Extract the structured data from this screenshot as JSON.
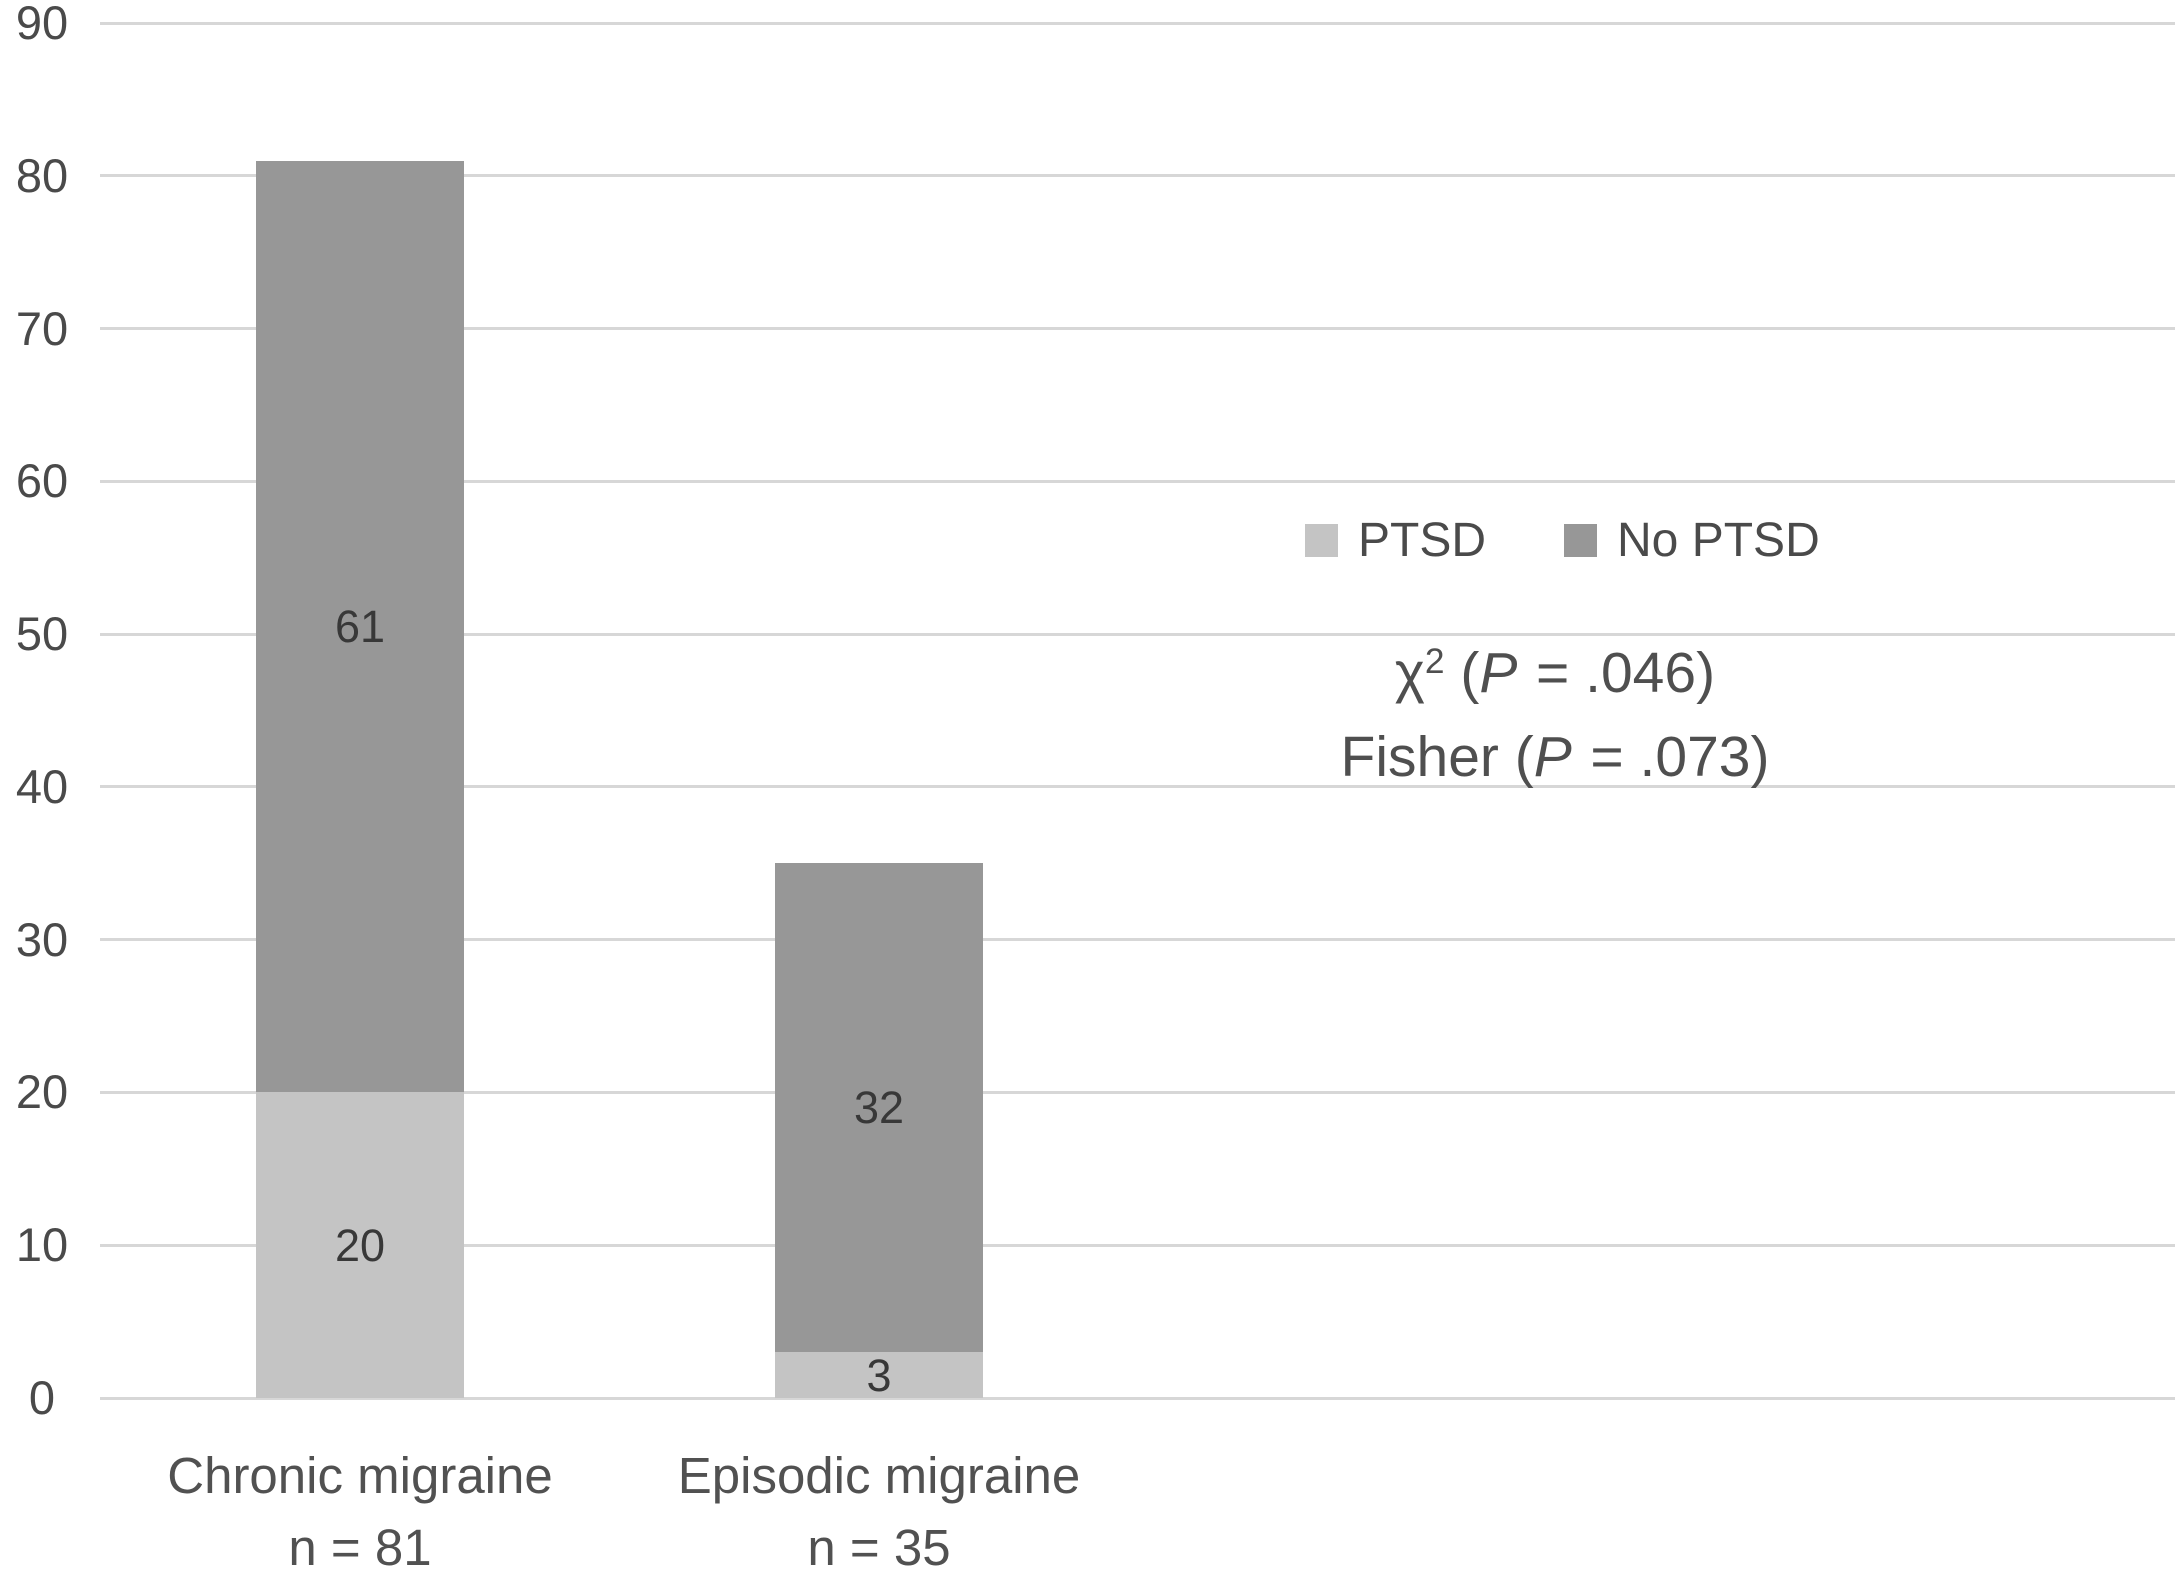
{
  "chart_data": {
    "type": "bar",
    "stacked": true,
    "title": "",
    "xlabel": "",
    "ylabel": "",
    "ylim": [
      0,
      90
    ],
    "yticks": [
      0,
      10,
      20,
      30,
      40,
      50,
      60,
      70,
      80,
      90
    ],
    "grid": true,
    "legend_position": "right-middle",
    "categories": [
      {
        "label": "Chronic migraine",
        "sublabel": "n = 81"
      },
      {
        "label": "Episodic migraine",
        "sublabel": "n = 35"
      }
    ],
    "series": [
      {
        "name": "PTSD",
        "color": "#c4c4c4",
        "values": [
          20,
          3
        ]
      },
      {
        "name": "No PTSD",
        "color": "#979797",
        "values": [
          61,
          32
        ]
      }
    ],
    "totals": [
      81,
      35
    ],
    "annotations": [
      {
        "lead": "χ",
        "sup": "2",
        "open": " (",
        "italic": "P",
        "tail": " = .046)"
      },
      {
        "lead": "Fisher",
        "sup": "",
        "open": " (",
        "italic": "P",
        "tail": " = .073)"
      }
    ]
  },
  "colors": {
    "background": "#ffffff",
    "gridline": "#d7d7d7",
    "tick_text": "#4a4a4a",
    "bar_label_text": "#383838",
    "category_text": "#515151",
    "legend_text": "#4a4a4a",
    "annotation_text": "#4f4f4f"
  }
}
